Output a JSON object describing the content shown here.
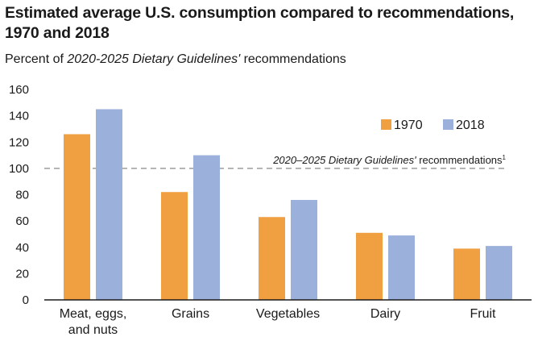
{
  "title": "Estimated average U.S. consumption compared to recommendations, 1970 and 2018",
  "subtitle": {
    "prefix": "Percent of ",
    "italic": "2020-2025 Dietary Guidelines'",
    "suffix": " recommendations"
  },
  "colors": {
    "series_1970": "#f0a040",
    "series_2018": "#9bb0da",
    "reference_line": "#888888"
  },
  "chart_data": {
    "type": "bar",
    "categories": [
      "Meat, eggs, and nuts",
      "Grains",
      "Vegetables",
      "Dairy",
      "Fruit"
    ],
    "category_lines": [
      [
        "Meat, eggs,",
        "and nuts"
      ],
      [
        "Grains"
      ],
      [
        "Vegetables"
      ],
      [
        "Dairy"
      ],
      [
        "Fruit"
      ]
    ],
    "series": [
      {
        "name": "1970",
        "values": [
          126,
          82,
          63,
          51,
          39
        ]
      },
      {
        "name": "2018",
        "values": [
          145,
          110,
          76,
          49,
          41
        ]
      }
    ],
    "ylim": [
      0,
      160
    ],
    "yticks": [
      "0",
      "20",
      "40",
      "60",
      "80",
      "100",
      "120",
      "140",
      "160"
    ],
    "ytick_values": [
      0,
      20,
      40,
      60,
      80,
      100,
      120,
      140,
      160
    ],
    "reference": {
      "value": 100,
      "label_italic": "2020–2025 Dietary Guidelines'",
      "label_rest": " recommendations",
      "label_sup": "1"
    },
    "legend_position": "top-right",
    "grid": false
  }
}
